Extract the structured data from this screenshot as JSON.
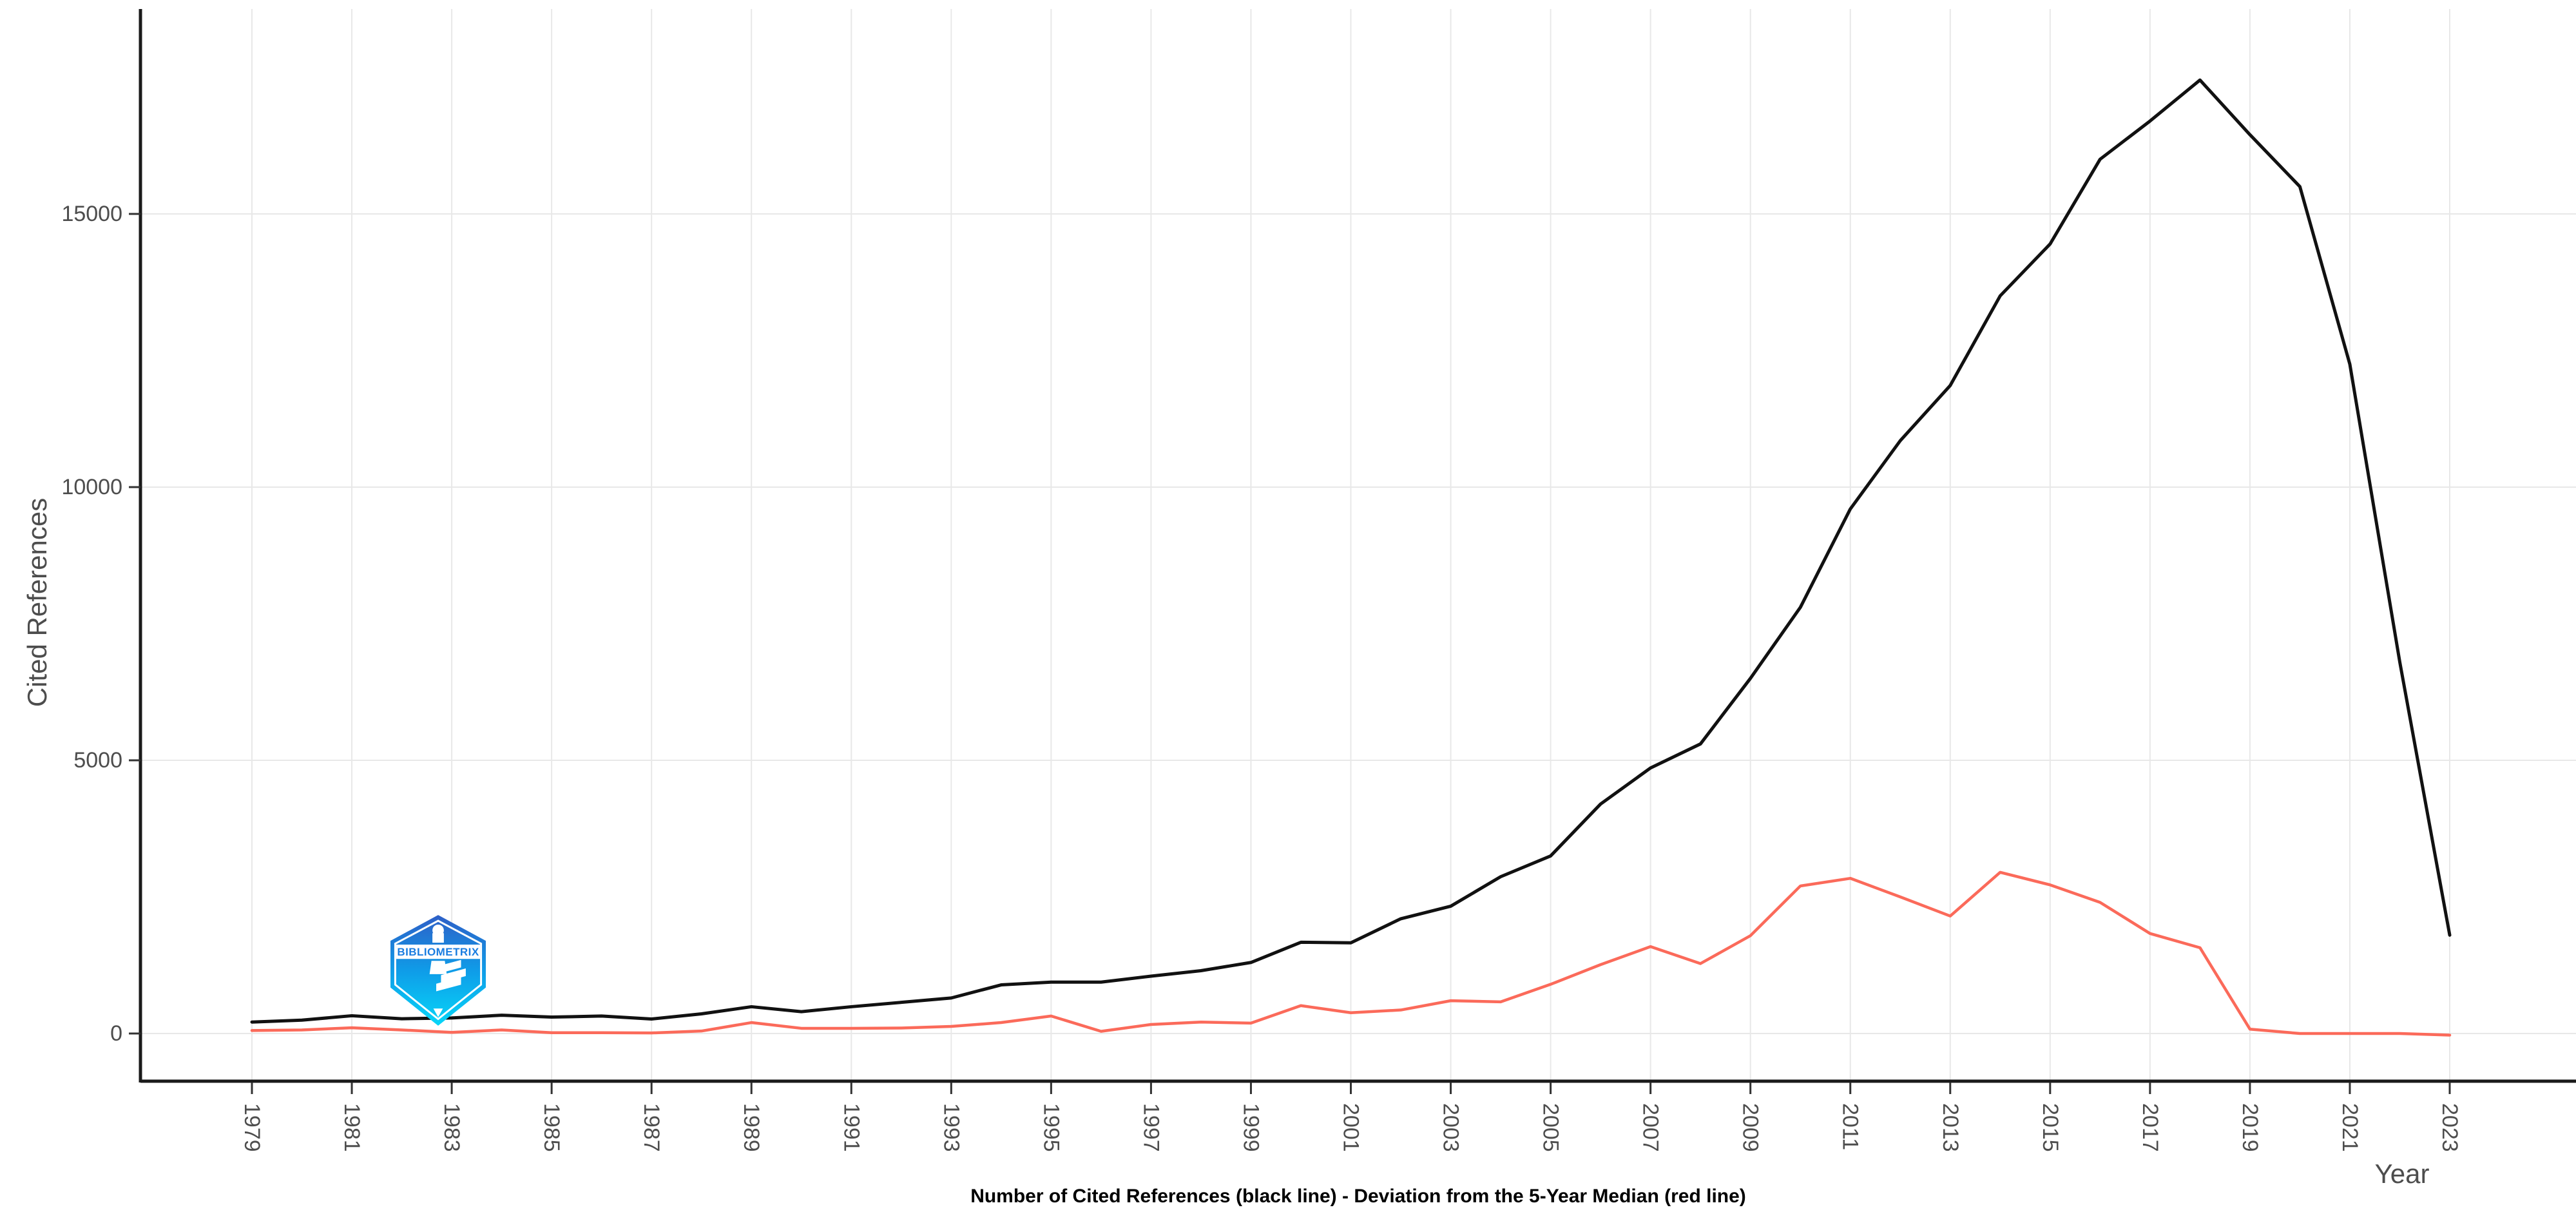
{
  "chart_data": {
    "type": "line",
    "title": "",
    "xlabel": "Year",
    "ylabel": "Cited References",
    "caption": "Number of Cited References (black line) - Deviation from the 5-Year Median (red line)",
    "x": [
      1979,
      1980,
      1981,
      1982,
      1983,
      1984,
      1985,
      1986,
      1987,
      1988,
      1989,
      1990,
      1991,
      1992,
      1993,
      1994,
      1995,
      1996,
      1997,
      1998,
      1999,
      2000,
      2001,
      2002,
      2003,
      2004,
      2005,
      2006,
      2007,
      2008,
      2009,
      2010,
      2011,
      2012,
      2013,
      2014,
      2015,
      2016,
      2017,
      2018,
      2019,
      2020,
      2021,
      2022,
      2023
    ],
    "series": [
      {
        "name": "Number of Cited References",
        "color": "#111111",
        "stroke_width": 5,
        "values": [
          210,
          245,
          325,
          270,
          285,
          335,
          300,
          320,
          265,
          360,
          490,
          400,
          490,
          570,
          650,
          890,
          940,
          940,
          1050,
          1150,
          1300,
          1670,
          1660,
          2100,
          2330,
          2870,
          3250,
          4200,
          4860,
          5300,
          6500,
          7800,
          9600,
          10850,
          11860,
          13500,
          14450,
          16000,
          16700,
          17450,
          16450,
          15500,
          12250,
          6800,
          1800
        ]
      },
      {
        "name": "Deviation from the 5-Year Median",
        "color": "#fb6a5a",
        "stroke_width": 4.5,
        "values": [
          55,
          65,
          105,
          65,
          20,
          65,
          15,
          15,
          10,
          45,
          200,
          95,
          95,
          100,
          130,
          200,
          320,
          40,
          165,
          210,
          190,
          510,
          380,
          430,
          600,
          580,
          900,
          1260,
          1590,
          1280,
          1790,
          2700,
          2840,
          2500,
          2150,
          2950,
          2720,
          2400,
          1830,
          1570,
          80,
          0,
          0,
          0,
          -30
        ]
      }
    ],
    "x_ticks": [
      1979,
      1981,
      1983,
      1985,
      1987,
      1989,
      1991,
      1993,
      1995,
      1997,
      1999,
      2001,
      2003,
      2005,
      2007,
      2009,
      2011,
      2013,
      2015,
      2017,
      2019,
      2021,
      2023
    ],
    "y_ticks": [
      0,
      5000,
      10000,
      15000
    ],
    "ylim": [
      -700,
      18600
    ],
    "grid": true,
    "legend_position": "none"
  },
  "watermark": {
    "label": "BIBLIOMETRIX"
  },
  "colors": {
    "grid": "#e8e8e8",
    "axis_line": "#1a1a1a",
    "tick_mark": "#333333",
    "tick_label": "#4d4d4d",
    "axis_title": "#4d4d4d",
    "caption": "#000000",
    "logo_gradient_top": "#2e5fc7",
    "logo_gradient_mid": "#0f9ce8",
    "logo_gradient_bottom": "#07d6f8",
    "logo_text": "#1a7de0"
  }
}
